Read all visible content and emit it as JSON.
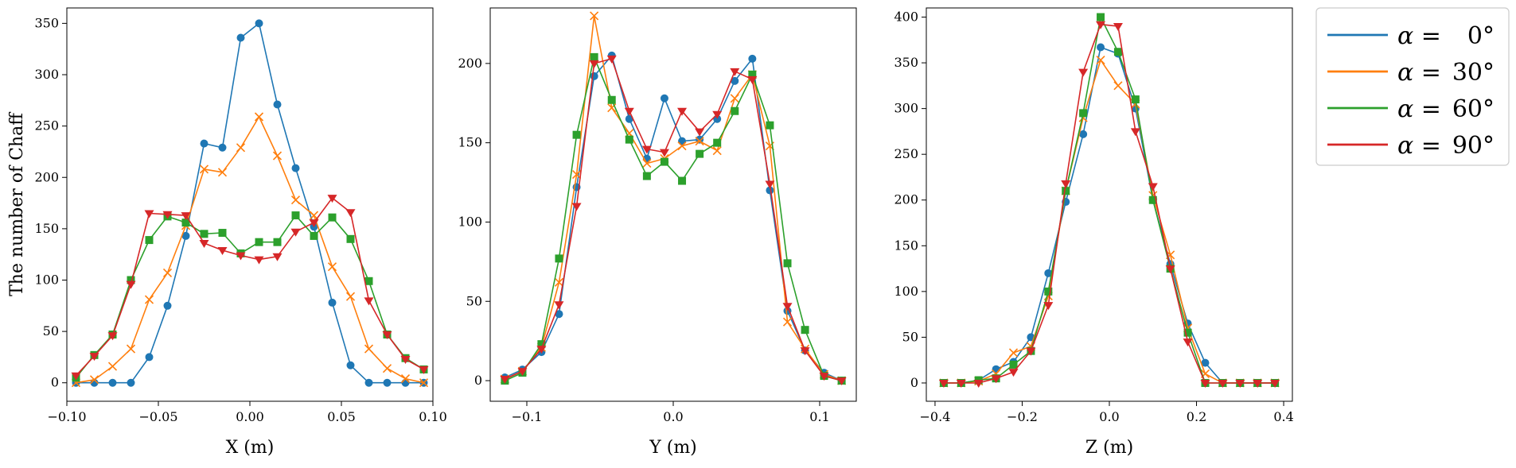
{
  "chart_data": [
    {
      "type": "line",
      "xlabel": "X (m)",
      "ylabel": "The number of Chaff",
      "xlim": [
        -0.1,
        0.1
      ],
      "ylim": [
        -18,
        365
      ],
      "xticks": [
        -0.1,
        -0.05,
        0.0,
        0.05,
        0.1
      ],
      "xtick_labels": [
        "−0.10",
        "−0.05",
        "0.00",
        "0.05",
        "0.10"
      ],
      "yticks": [
        0,
        50,
        100,
        150,
        200,
        250,
        300,
        350
      ],
      "ytick_labels": [
        "0",
        "50",
        "100",
        "150",
        "200",
        "250",
        "300",
        "350"
      ],
      "x": [
        -0.095,
        -0.085,
        -0.075,
        -0.065,
        -0.055,
        -0.045,
        -0.035,
        -0.025,
        -0.015,
        -0.005,
        0.005,
        0.015,
        0.025,
        0.035,
        0.045,
        0.055,
        0.065,
        0.075,
        0.085,
        0.095
      ],
      "series": [
        {
          "name": "alpha_0",
          "values": [
            0,
            0,
            0,
            0,
            25,
            75,
            143,
            233,
            229,
            336,
            350,
            271,
            209,
            152,
            78,
            17,
            0,
            0,
            0,
            0
          ]
        },
        {
          "name": "alpha_30",
          "values": [
            0,
            3,
            16,
            33,
            81,
            107,
            153,
            208,
            205,
            229,
            259,
            221,
            178,
            163,
            113,
            84,
            33,
            14,
            4,
            0
          ]
        },
        {
          "name": "alpha_60",
          "values": [
            5,
            27,
            47,
            100,
            139,
            162,
            156,
            145,
            146,
            126,
            137,
            137,
            163,
            143,
            161,
            140,
            99,
            47,
            24,
            13
          ]
        },
        {
          "name": "alpha_90",
          "values": [
            7,
            26,
            46,
            96,
            165,
            164,
            163,
            136,
            129,
            124,
            120,
            123,
            147,
            156,
            180,
            166,
            80,
            47,
            23,
            13
          ]
        }
      ]
    },
    {
      "type": "line",
      "xlabel": "Y (m)",
      "xlim": [
        -0.125,
        0.125
      ],
      "ylim": [
        -13,
        235
      ],
      "xticks": [
        -0.1,
        0.0,
        0.1
      ],
      "xtick_labels": [
        "−0.1",
        "0.0",
        "0.1"
      ],
      "yticks": [
        0,
        50,
        100,
        150,
        200
      ],
      "ytick_labels": [
        "0",
        "50",
        "100",
        "150",
        "200"
      ],
      "x": [
        -0.115,
        -0.103,
        -0.09,
        -0.078,
        -0.066,
        -0.054,
        -0.042,
        -0.03,
        -0.018,
        -0.006,
        0.006,
        0.018,
        0.03,
        0.042,
        0.054,
        0.066,
        0.078,
        0.09,
        0.103,
        0.115
      ],
      "series": [
        {
          "name": "alpha_0",
          "values": [
            2,
            7,
            18,
            42,
            122,
            192,
            205,
            165,
            140,
            178,
            151,
            152,
            165,
            189,
            203,
            120,
            44,
            19,
            5,
            0
          ]
        },
        {
          "name": "alpha_30",
          "values": [
            1,
            6,
            21,
            62,
            130,
            230,
            172,
            156,
            137,
            140,
            148,
            151,
            145,
            178,
            193,
            148,
            37,
            20,
            4,
            0
          ]
        },
        {
          "name": "alpha_60",
          "values": [
            0,
            5,
            23,
            77,
            155,
            204,
            177,
            152,
            129,
            138,
            126,
            143,
            150,
            170,
            193,
            161,
            74,
            32,
            3,
            0
          ]
        },
        {
          "name": "alpha_90",
          "values": [
            1,
            6,
            20,
            48,
            110,
            200,
            203,
            170,
            146,
            144,
            170,
            157,
            168,
            195,
            190,
            124,
            47,
            19,
            3,
            0
          ]
        }
      ]
    },
    {
      "type": "line",
      "xlabel": "Z (m)",
      "xlim": [
        -0.42,
        0.42
      ],
      "ylim": [
        -20,
        410
      ],
      "xticks": [
        -0.4,
        -0.2,
        0.0,
        0.2,
        0.4
      ],
      "xtick_labels": [
        "−0.4",
        "−0.2",
        "0.0",
        "0.2",
        "0.4"
      ],
      "yticks": [
        0,
        50,
        100,
        150,
        200,
        250,
        300,
        350,
        400
      ],
      "ytick_labels": [
        "0",
        "50",
        "100",
        "150",
        "200",
        "250",
        "300",
        "350",
        "400"
      ],
      "x": [
        -0.38,
        -0.34,
        -0.3,
        -0.26,
        -0.22,
        -0.18,
        -0.14,
        -0.1,
        -0.06,
        -0.02,
        0.02,
        0.06,
        0.1,
        0.14,
        0.18,
        0.22,
        0.26,
        0.3,
        0.34,
        0.38
      ],
      "series": [
        {
          "name": "alpha_0",
          "values": [
            0,
            0,
            3,
            15,
            23,
            50,
            120,
            198,
            272,
            367,
            360,
            300,
            200,
            130,
            65,
            22,
            0,
            0,
            0,
            0
          ]
        },
        {
          "name": "alpha_30",
          "values": [
            0,
            0,
            2,
            10,
            33,
            40,
            95,
            210,
            290,
            353,
            325,
            305,
            205,
            140,
            60,
            10,
            0,
            0,
            0,
            0
          ]
        },
        {
          "name": "alpha_60",
          "values": [
            0,
            0,
            3,
            5,
            20,
            35,
            100,
            210,
            295,
            400,
            362,
            310,
            200,
            125,
            55,
            0,
            0,
            0,
            0,
            0
          ]
        },
        {
          "name": "alpha_90",
          "values": [
            0,
            0,
            0,
            5,
            12,
            35,
            85,
            218,
            340,
            392,
            390,
            275,
            215,
            125,
            45,
            0,
            0,
            0,
            0,
            0
          ]
        }
      ]
    }
  ],
  "legend": {
    "placement": "outside right, top",
    "entries": [
      {
        "prefix": "α =",
        "value": "0°"
      },
      {
        "prefix": "α =",
        "value": "30°"
      },
      {
        "prefix": "α =",
        "value": "60°"
      },
      {
        "prefix": "α =",
        "value": "90°"
      }
    ]
  },
  "series_style": {
    "alpha_0": {
      "color": "#1f77b4",
      "marker": "circle"
    },
    "alpha_30": {
      "color": "#ff7f0e",
      "marker": "x"
    },
    "alpha_60": {
      "color": "#2ca02c",
      "marker": "square"
    },
    "alpha_90": {
      "color": "#d62728",
      "marker": "triangle-down"
    }
  }
}
